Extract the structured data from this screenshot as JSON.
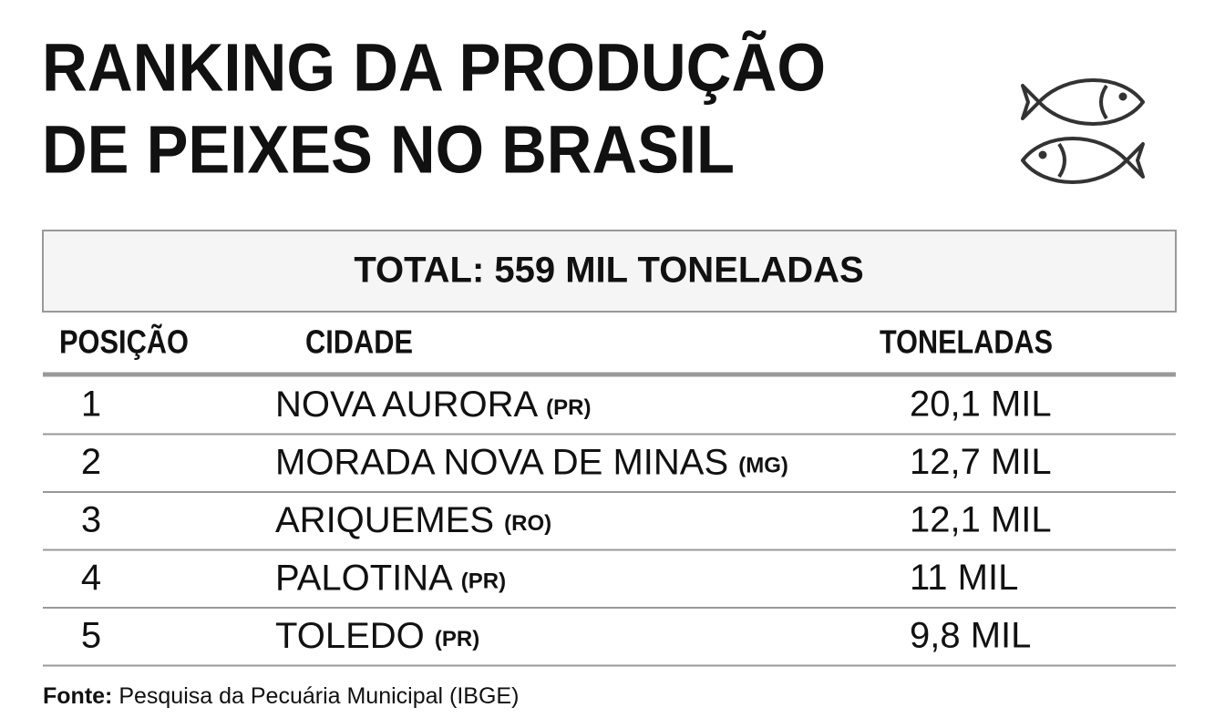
{
  "header": {
    "title_lines": [
      "RANKING DA PRODUÇÃO",
      "DE PEIXES NO BRASIL"
    ]
  },
  "table": {
    "total": "TOTAL: 559 MIL TONELADAS",
    "columns": [
      "POSIÇÃO",
      "CIDADE",
      "TONELADAS"
    ],
    "rows": [
      {
        "position": "1",
        "city": "NOVA AURORA",
        "state": "(PR)",
        "tons": "20,1 MIL"
      },
      {
        "position": "2",
        "city": "MORADA NOVA DE MINAS",
        "state": "(MG)",
        "tons": "12,7 MIL"
      },
      {
        "position": "3",
        "city": "ARIQUEMES",
        "state": "(RO)",
        "tons": "12,1 MIL"
      },
      {
        "position": "4",
        "city": "PALOTINA",
        "state": "(PR)",
        "tons": "11 MIL"
      },
      {
        "position": "5",
        "city": "TOLEDO",
        "state": "(PR)",
        "tons": "9,8 MIL"
      }
    ]
  },
  "source": {
    "label": "Fonte:",
    "text": "Pesquisa da Pecuária Municipal (IBGE)"
  }
}
